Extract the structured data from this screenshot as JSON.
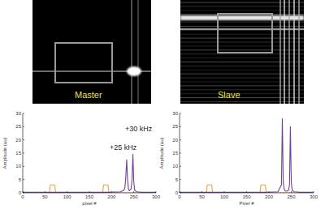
{
  "images": [
    {
      "label": "Master"
    },
    {
      "label": "Slave"
    }
  ],
  "chart_data": [
    {
      "type": "line",
      "x": [
        0,
        20,
        40,
        60,
        62,
        64,
        70,
        72,
        74,
        100,
        140,
        180,
        182,
        184,
        190,
        192,
        194,
        220,
        228,
        230,
        232,
        234,
        236,
        238,
        240,
        244,
        246,
        248,
        250,
        252,
        256,
        270,
        300
      ],
      "series": [
        {
          "color": "#e8a33c",
          "values": [
            0,
            0,
            0,
            0,
            3,
            3,
            3,
            3,
            0,
            0,
            0,
            0,
            3,
            3,
            3,
            3,
            0,
            0,
            0,
            0,
            0,
            0,
            0,
            0,
            0,
            0,
            0,
            0,
            0,
            0,
            0,
            0,
            0
          ]
        },
        {
          "color": "#7b3d9a",
          "values": [
            0.2,
            0.2,
            0.2,
            0.2,
            0.2,
            0.2,
            0.2,
            0.2,
            0.2,
            0.2,
            0.2,
            0.2,
            0.2,
            0.2,
            0.2,
            0.2,
            0.2,
            0.4,
            1,
            2,
            6,
            12.5,
            5,
            1.5,
            0.8,
            1.5,
            5,
            14.5,
            4,
            1,
            0.4,
            0.2,
            0.2
          ]
        }
      ],
      "xlabel": "pixel #",
      "ylabel": "Amplitude (au)",
      "xlim": [
        0,
        300
      ],
      "ylim": [
        0,
        30
      ],
      "xticks": [
        0,
        50,
        100,
        150,
        200,
        250,
        300
      ],
      "yticks": [
        0,
        5,
        10,
        15,
        20,
        25,
        30
      ],
      "annotations": [
        "+30 kHz",
        "+25 kHz"
      ],
      "grid": false
    },
    {
      "type": "line",
      "x": [
        0,
        20,
        40,
        60,
        62,
        64,
        70,
        72,
        74,
        100,
        140,
        180,
        182,
        184,
        190,
        192,
        194,
        220,
        228,
        230,
        232,
        234,
        236,
        238,
        240,
        244,
        246,
        248,
        250,
        252,
        256,
        270,
        300
      ],
      "series": [
        {
          "color": "#e8a33c",
          "values": [
            0,
            0,
            0,
            0,
            3,
            3,
            3,
            3,
            0,
            0,
            0,
            0,
            3,
            3,
            3,
            3,
            0,
            0,
            0,
            0,
            0,
            0,
            0,
            0,
            0,
            0,
            0,
            0,
            0,
            0,
            0,
            0,
            0
          ]
        },
        {
          "color": "#7b3d9a",
          "values": [
            0.2,
            0.2,
            0.2,
            0.2,
            0.2,
            0.2,
            0.2,
            0.2,
            0.2,
            0.2,
            0.2,
            0.2,
            0.2,
            0.2,
            0.2,
            0.2,
            0.2,
            0.4,
            3,
            28,
            4,
            1.5,
            0.8,
            0.6,
            0.6,
            1,
            3,
            25,
            4,
            1,
            0.4,
            0.2,
            0.2
          ]
        }
      ],
      "xlabel": "Pixel #",
      "ylabel": "Amplitude (au)",
      "xlim": [
        0,
        300
      ],
      "ylim": [
        0,
        30
      ],
      "xticks": [
        0,
        50,
        100,
        150,
        200,
        250,
        300
      ],
      "yticks": [
        0,
        5,
        10,
        15,
        20,
        25,
        30
      ],
      "grid": false
    }
  ]
}
